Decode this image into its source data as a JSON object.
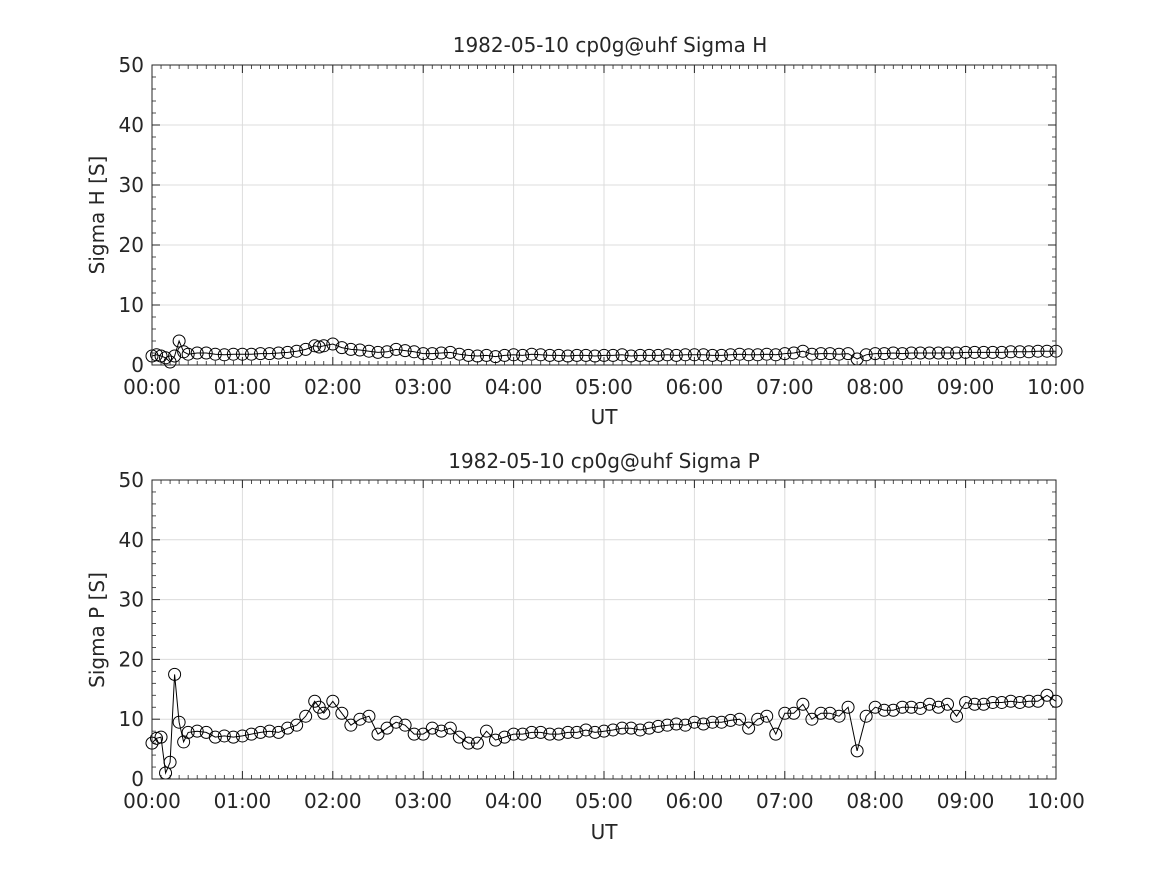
{
  "colors": {
    "line": "#000000",
    "grid": "#dcdcdc",
    "axis": "#262626"
  },
  "chart_data": [
    {
      "type": "line",
      "title": "1982-05-10  cp0g@uhf Sigma H",
      "xlabel": "UT",
      "ylabel": "Sigma H [S]",
      "xlim": [
        0,
        10
      ],
      "ylim": [
        0,
        50
      ],
      "xticks": [
        "00:00",
        "01:00",
        "02:00",
        "03:00",
        "04:00",
        "05:00",
        "06:00",
        "07:00",
        "08:00",
        "09:00",
        "10:00"
      ],
      "yticks": [
        "0",
        "10",
        "20",
        "30",
        "40",
        "50"
      ],
      "grid": true,
      "marker": "open-circle",
      "series": [
        {
          "x": [
            0.0,
            0.05,
            0.1,
            0.15,
            0.2,
            0.25,
            0.3,
            0.35,
            0.4,
            0.5,
            0.6,
            0.7,
            0.8,
            0.9,
            1.0,
            1.1,
            1.2,
            1.3,
            1.4,
            1.5,
            1.6,
            1.7,
            1.8,
            1.85,
            1.9,
            2.0,
            2.1,
            2.2,
            2.3,
            2.4,
            2.5,
            2.6,
            2.7,
            2.8,
            2.9,
            3.0,
            3.1,
            3.2,
            3.3,
            3.4,
            3.5,
            3.6,
            3.7,
            3.8,
            3.9,
            4.0,
            4.1,
            4.2,
            4.3,
            4.4,
            4.5,
            4.6,
            4.7,
            4.8,
            4.9,
            5.0,
            5.1,
            5.2,
            5.3,
            5.4,
            5.5,
            5.6,
            5.7,
            5.8,
            5.9,
            6.0,
            6.1,
            6.2,
            6.3,
            6.4,
            6.5,
            6.6,
            6.7,
            6.8,
            6.9,
            7.0,
            7.1,
            7.2,
            7.3,
            7.4,
            7.5,
            7.6,
            7.7,
            7.8,
            7.9,
            8.0,
            8.1,
            8.2,
            8.3,
            8.4,
            8.5,
            8.6,
            8.7,
            8.8,
            8.9,
            9.0,
            9.1,
            9.2,
            9.3,
            9.4,
            9.5,
            9.6,
            9.7,
            9.8,
            9.9,
            10.0
          ],
          "y": [
            1.5,
            1.7,
            1.5,
            1.2,
            0.5,
            1.5,
            4.0,
            2.2,
            1.8,
            2.0,
            2.0,
            1.8,
            1.7,
            1.8,
            1.8,
            1.8,
            1.9,
            1.9,
            2.0,
            2.1,
            2.3,
            2.6,
            3.2,
            3.0,
            3.2,
            3.5,
            2.9,
            2.6,
            2.5,
            2.3,
            2.1,
            2.2,
            2.6,
            2.4,
            2.2,
            1.9,
            1.9,
            2.0,
            2.1,
            1.8,
            1.6,
            1.5,
            1.6,
            1.4,
            1.6,
            1.7,
            1.6,
            1.8,
            1.7,
            1.6,
            1.6,
            1.5,
            1.6,
            1.6,
            1.5,
            1.6,
            1.6,
            1.7,
            1.5,
            1.6,
            1.6,
            1.6,
            1.7,
            1.6,
            1.7,
            1.7,
            1.7,
            1.6,
            1.6,
            1.7,
            1.8,
            1.7,
            1.7,
            1.8,
            1.7,
            1.9,
            2.0,
            2.3,
            1.8,
            1.9,
            1.9,
            1.8,
            1.9,
            1.0,
            1.7,
            1.9,
            1.9,
            2.0,
            1.9,
            2.0,
            2.0,
            2.0,
            2.0,
            2.0,
            2.0,
            2.1,
            2.1,
            2.1,
            2.1,
            2.1,
            2.2,
            2.2,
            2.2,
            2.3,
            2.3,
            2.3
          ]
        }
      ]
    },
    {
      "type": "line",
      "title": "1982-05-10  cp0g@uhf Sigma P",
      "xlabel": "UT",
      "ylabel": "Sigma P [S]",
      "xlim": [
        0,
        10
      ],
      "ylim": [
        0,
        50
      ],
      "xticks": [
        "00:00",
        "01:00",
        "02:00",
        "03:00",
        "04:00",
        "05:00",
        "06:00",
        "07:00",
        "08:00",
        "09:00",
        "10:00"
      ],
      "yticks": [
        "0",
        "10",
        "20",
        "30",
        "40",
        "50"
      ],
      "grid": true,
      "marker": "open-circle",
      "series": [
        {
          "x": [
            0.0,
            0.05,
            0.1,
            0.15,
            0.2,
            0.25,
            0.3,
            0.35,
            0.4,
            0.5,
            0.6,
            0.7,
            0.8,
            0.9,
            1.0,
            1.1,
            1.2,
            1.3,
            1.4,
            1.5,
            1.6,
            1.7,
            1.8,
            1.85,
            1.9,
            2.0,
            2.1,
            2.2,
            2.3,
            2.4,
            2.5,
            2.6,
            2.7,
            2.8,
            2.9,
            3.0,
            3.1,
            3.2,
            3.3,
            3.4,
            3.5,
            3.6,
            3.7,
            3.8,
            3.9,
            4.0,
            4.1,
            4.2,
            4.3,
            4.4,
            4.5,
            4.6,
            4.7,
            4.8,
            4.9,
            5.0,
            5.1,
            5.2,
            5.3,
            5.4,
            5.5,
            5.6,
            5.7,
            5.8,
            5.9,
            6.0,
            6.1,
            6.2,
            6.3,
            6.4,
            6.5,
            6.6,
            6.7,
            6.8,
            6.9,
            7.0,
            7.1,
            7.2,
            7.3,
            7.4,
            7.5,
            7.6,
            7.7,
            7.8,
            7.9,
            8.0,
            8.1,
            8.2,
            8.3,
            8.4,
            8.5,
            8.6,
            8.7,
            8.8,
            8.9,
            9.0,
            9.1,
            9.2,
            9.3,
            9.4,
            9.5,
            9.6,
            9.7,
            9.8,
            9.9,
            10.0
          ],
          "y": [
            6.0,
            6.8,
            7.0,
            1.0,
            2.8,
            17.5,
            9.5,
            6.2,
            7.8,
            8.0,
            7.8,
            7.0,
            7.2,
            7.0,
            7.2,
            7.5,
            7.8,
            8.0,
            7.8,
            8.5,
            9.0,
            10.5,
            13.0,
            12.0,
            11.0,
            13.0,
            11.0,
            9.0,
            10.0,
            10.5,
            7.5,
            8.5,
            9.5,
            9.0,
            7.5,
            7.5,
            8.5,
            8.0,
            8.5,
            7.0,
            6.0,
            6.0,
            8.0,
            6.5,
            7.0,
            7.5,
            7.5,
            7.8,
            7.8,
            7.5,
            7.5,
            7.8,
            7.8,
            8.2,
            7.8,
            8.0,
            8.2,
            8.5,
            8.5,
            8.2,
            8.5,
            8.8,
            9.0,
            9.2,
            9.0,
            9.5,
            9.2,
            9.5,
            9.5,
            9.8,
            10.0,
            8.5,
            10.0,
            10.5,
            7.5,
            11.0,
            11.0,
            12.5,
            10.0,
            11.0,
            11.0,
            10.5,
            12.0,
            4.7,
            10.5,
            12.0,
            11.5,
            11.5,
            12.0,
            12.0,
            11.8,
            12.5,
            12.0,
            12.5,
            10.5,
            12.8,
            12.5,
            12.5,
            12.8,
            12.8,
            13.0,
            12.8,
            13.0,
            13.0,
            14.0,
            13.0
          ]
        }
      ]
    }
  ]
}
